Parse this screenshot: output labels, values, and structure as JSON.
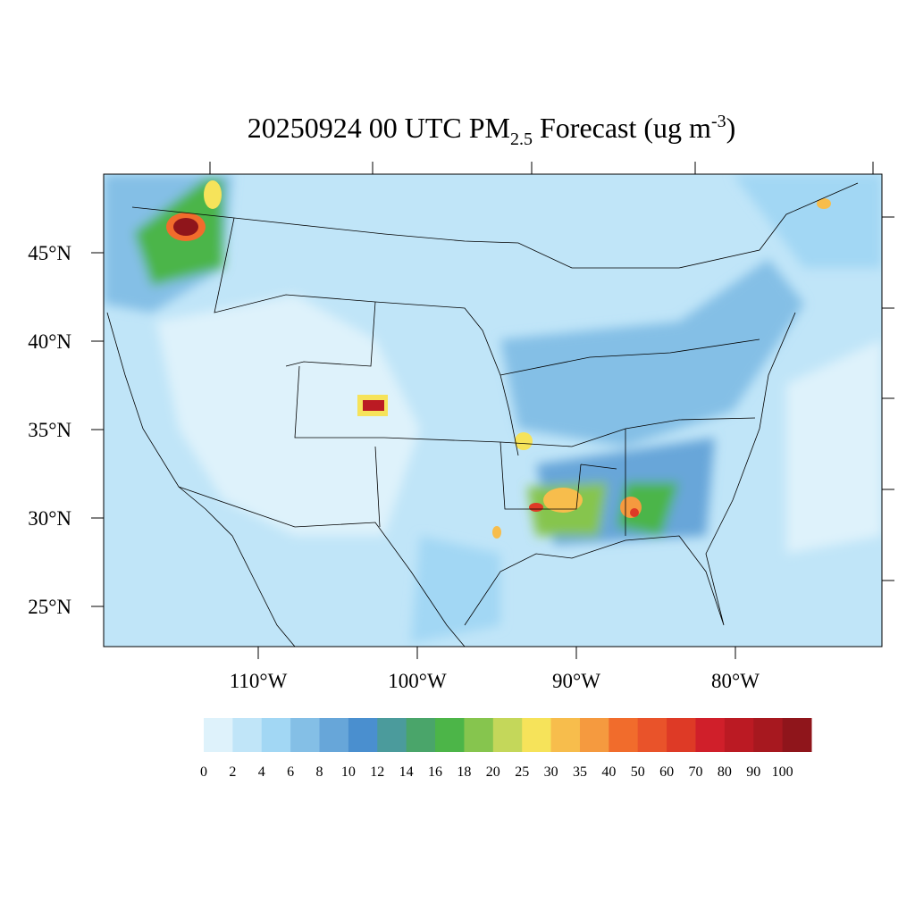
{
  "map": {
    "title": {
      "text": "20250924 00 UTC PM",
      "subscript": "2.5",
      "text2": " Forecast (ug m",
      "superscript": "-3",
      "text3": ")"
    },
    "lat_ticks": [
      {
        "value": 45,
        "label": "45°N"
      },
      {
        "value": 40,
        "label": "40°N"
      },
      {
        "value": 35,
        "label": "35°N"
      },
      {
        "value": 30,
        "label": "30°N"
      },
      {
        "value": 25,
        "label": "25°N"
      }
    ],
    "lon_ticks": [
      {
        "value": 110,
        "label": "110°W"
      },
      {
        "value": 100,
        "label": "100°W"
      },
      {
        "value": 90,
        "label": "90°W"
      },
      {
        "value": 80,
        "label": "80°W"
      }
    ],
    "colorbar": {
      "levels": [
        0,
        2,
        4,
        6,
        8,
        10,
        12,
        14,
        16,
        18,
        20,
        25,
        30,
        35,
        40,
        50,
        60,
        70,
        80,
        90,
        100
      ],
      "colors": [
        "#def2fb",
        "#c0e5f8",
        "#a2d7f4",
        "#84bfe6",
        "#67a6d9",
        "#4a8fcf",
        "#4b9b9c",
        "#4aa56a",
        "#4cb548",
        "#86c54e",
        "#c4d75a",
        "#f6e35a",
        "#f7bd4c",
        "#f59a3f",
        "#f16c2c",
        "#e9532a",
        "#de3a26",
        "#d01f2a",
        "#bb1a23",
        "#a7181f",
        "#8f151b"
      ]
    }
  }
}
